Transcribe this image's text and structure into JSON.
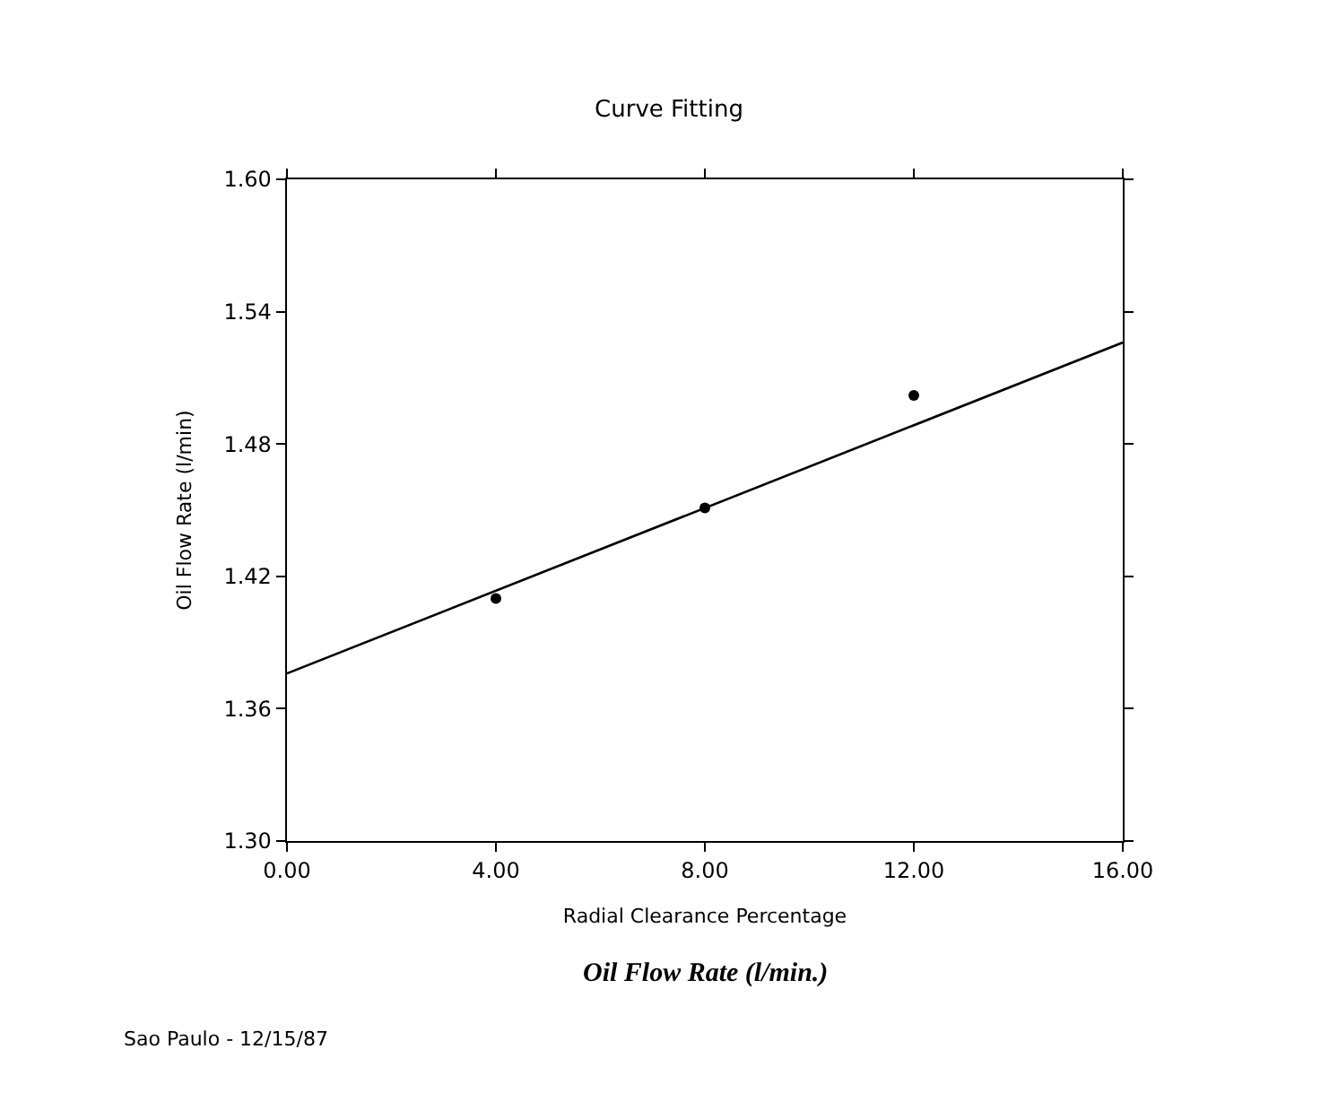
{
  "chart_data": {
    "type": "scatter",
    "title": "Curve Fitting",
    "xlabel": "Radial Clearance Percentage",
    "ylabel": "Oil Flow Rate (l/min)",
    "x": [
      4,
      8,
      12
    ],
    "series": [
      {
        "color": "#000000",
        "marker": "circle",
        "values": [
          1.41,
          1.451,
          1.502
        ]
      },
      {
        "type": "line",
        "color": "#000000",
        "marker": "none",
        "line_style": "solid",
        "x": [
          0,
          16
        ],
        "values": [
          1.376,
          1.526
        ]
      }
    ],
    "xlim": [
      0,
      16
    ],
    "ylim": [
      1.3,
      1.6
    ],
    "xticks": [
      {
        "value": 0,
        "label": "0.00"
      },
      {
        "value": 4,
        "label": "4.00"
      },
      {
        "value": 8,
        "label": "8.00"
      },
      {
        "value": 12,
        "label": "12.00"
      },
      {
        "value": 16,
        "label": "16.00"
      }
    ],
    "yticks": [
      {
        "value": 1.3,
        "label": "1.30"
      },
      {
        "value": 1.36,
        "label": "1.36"
      },
      {
        "value": 1.42,
        "label": "1.42"
      },
      {
        "value": 1.48,
        "label": "1.48"
      },
      {
        "value": 1.54,
        "label": "1.54"
      },
      {
        "value": 1.6,
        "label": "1.60"
      }
    ],
    "annotations": [
      "Oil Flow Rate (l/min.)",
      "Sao Paulo - 12/15/87"
    ]
  }
}
